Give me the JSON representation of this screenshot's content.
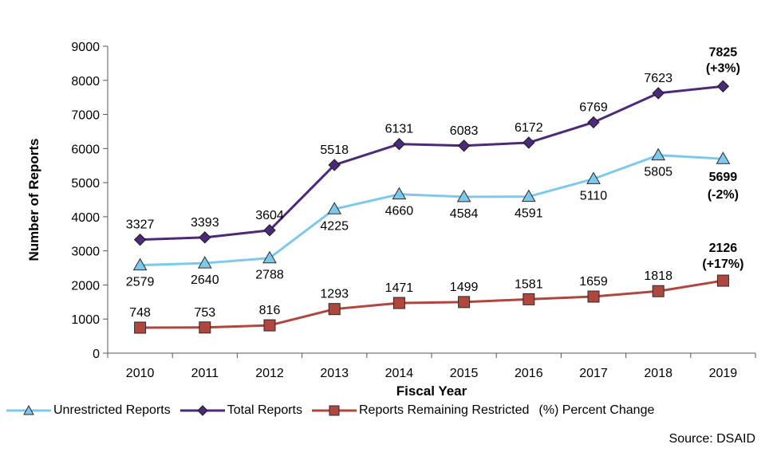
{
  "chart_data": {
    "type": "line",
    "categories": [
      "2010",
      "2011",
      "2012",
      "2013",
      "2014",
      "2015",
      "2016",
      "2017",
      "2018",
      "2019"
    ],
    "xlabel": "Fiscal Year",
    "ylabel": "Number of Reports",
    "ylim": [
      0,
      9000
    ],
    "yticks": [
      "0",
      "1000",
      "2000",
      "3000",
      "4000",
      "5000",
      "6000",
      "7000",
      "8000",
      "9000"
    ],
    "grid": false,
    "legend_position": "bottom",
    "series": [
      {
        "name": "Total Reports",
        "color": "#4b2a7a",
        "marker": "diamond",
        "values": [
          3327,
          3393,
          3604,
          5518,
          6131,
          6083,
          6172,
          6769,
          7623,
          7825
        ],
        "last_change": "(+3%)"
      },
      {
        "name": "Unrestricted Reports",
        "color": "#7ec8ec",
        "marker": "triangle",
        "values": [
          2579,
          2640,
          2788,
          4225,
          4660,
          4584,
          4591,
          5110,
          5805,
          5699
        ],
        "last_change": "(-2%)"
      },
      {
        "name": "Reports Remaining Restricted",
        "color": "#b0473e",
        "marker": "square",
        "values": [
          748,
          753,
          816,
          1293,
          1471,
          1499,
          1581,
          1659,
          1818,
          2126
        ],
        "last_change": "(+17%)"
      }
    ]
  },
  "legend": {
    "items": [
      {
        "label": "Unrestricted Reports",
        "color": "#7ec8ec",
        "marker": "triangle"
      },
      {
        "label": "Total Reports",
        "color": "#4b2a7a",
        "marker": "diamond"
      },
      {
        "label": "Reports Remaining Restricted",
        "color": "#b0473e",
        "marker": "square"
      }
    ],
    "percent_note": "(%) Percent Change"
  },
  "source": "Source: DSAID"
}
